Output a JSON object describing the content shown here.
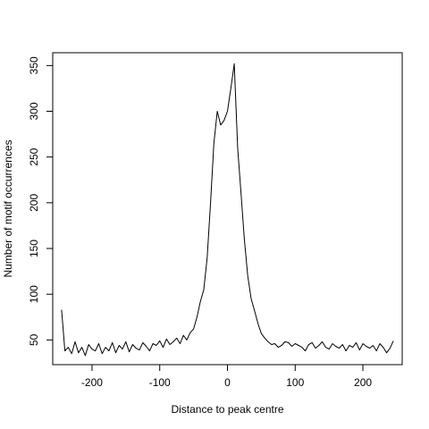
{
  "chart_data": {
    "type": "line",
    "title": "",
    "xlabel": "Distance to peak centre",
    "ylabel": "Number of motif occurrences",
    "xlim": [
      -258,
      258
    ],
    "ylim": [
      23,
      364
    ],
    "x_ticks": [
      -200,
      -100,
      0,
      100,
      200
    ],
    "y_ticks": [
      50,
      100,
      150,
      200,
      250,
      300,
      350
    ],
    "x_tick_labels": [
      "-200",
      "-100",
      "0",
      "100",
      "200"
    ],
    "y_tick_labels": [
      "50",
      "100",
      "150",
      "200",
      "250",
      "300",
      "350"
    ],
    "grid": false,
    "line_color": "#000000",
    "series": [
      {
        "x": [
          -245,
          -240,
          -235,
          -230,
          -225,
          -220,
          -215,
          -210,
          -205,
          -200,
          -195,
          -190,
          -185,
          -180,
          -175,
          -170,
          -165,
          -160,
          -155,
          -150,
          -145,
          -140,
          -135,
          -130,
          -125,
          -120,
          -115,
          -110,
          -105,
          -100,
          -95,
          -90,
          -85,
          -80,
          -75,
          -70,
          -65,
          -60,
          -55,
          -50,
          -45,
          -40,
          -35,
          -30,
          -25,
          -20,
          -15,
          -10,
          -5,
          0,
          5,
          10,
          15,
          20,
          25,
          30,
          35,
          40,
          45,
          50,
          55,
          60,
          65,
          70,
          75,
          80,
          85,
          90,
          95,
          100,
          105,
          110,
          115,
          120,
          125,
          130,
          135,
          140,
          145,
          150,
          155,
          160,
          165,
          170,
          175,
          180,
          185,
          190,
          195,
          200,
          205,
          210,
          215,
          220,
          225,
          230,
          235,
          240,
          245
        ],
        "values": [
          83,
          38,
          42,
          35,
          48,
          36,
          42,
          33,
          45,
          40,
          38,
          46,
          35,
          42,
          38,
          47,
          36,
          44,
          40,
          48,
          37,
          45,
          41,
          39,
          47,
          43,
          38,
          46,
          44,
          49,
          42,
          51,
          45,
          48,
          52,
          46,
          55,
          50,
          58,
          62,
          75,
          92,
          105,
          140,
          200,
          265,
          300,
          285,
          290,
          300,
          325,
          352,
          260,
          210,
          160,
          120,
          95,
          82,
          68,
          57,
          52,
          48,
          45,
          46,
          42,
          44,
          48,
          47,
          43,
          46,
          44,
          42,
          38,
          45,
          47,
          41,
          44,
          48,
          42,
          40,
          46,
          43,
          41,
          45,
          38,
          44,
          42,
          47,
          39,
          46,
          43,
          41,
          44,
          38,
          46,
          42,
          36,
          41,
          49
        ]
      }
    ]
  }
}
